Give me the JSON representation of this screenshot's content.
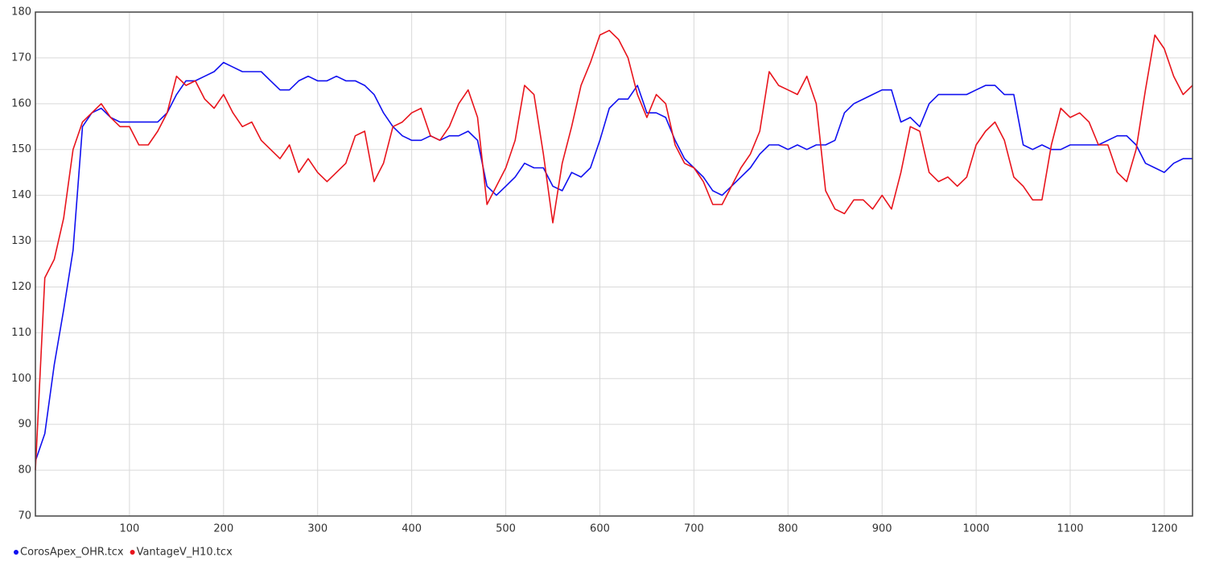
{
  "chart_data": {
    "type": "line",
    "x": [
      0,
      10,
      20,
      30,
      40,
      50,
      60,
      70,
      80,
      90,
      100,
      110,
      120,
      130,
      140,
      150,
      160,
      170,
      180,
      190,
      200,
      210,
      220,
      230,
      240,
      250,
      260,
      270,
      280,
      290,
      300,
      310,
      320,
      330,
      340,
      350,
      360,
      370,
      380,
      390,
      400,
      410,
      420,
      430,
      440,
      450,
      460,
      470,
      480,
      490,
      500,
      510,
      520,
      530,
      540,
      550,
      560,
      570,
      580,
      590,
      600,
      610,
      620,
      630,
      640,
      650,
      660,
      670,
      680,
      690,
      700,
      710,
      720,
      730,
      740,
      750,
      760,
      770,
      780,
      790,
      800,
      810,
      820,
      830,
      840,
      850,
      860,
      870,
      880,
      890,
      900,
      910,
      920,
      930,
      940,
      950,
      960,
      970,
      980,
      990,
      1000,
      1010,
      1020,
      1030,
      1040,
      1050,
      1060,
      1070,
      1080,
      1090,
      1100,
      1110,
      1120,
      1130,
      1140,
      1150,
      1160,
      1170,
      1180,
      1190,
      1200,
      1210,
      1220,
      1230
    ],
    "series": [
      {
        "name": "CorosApex_OHR.tcx",
        "color": "#1010f0",
        "values": [
          82,
          88,
          103,
          115,
          128,
          155,
          158,
          159,
          157,
          156,
          156,
          156,
          156,
          156,
          158,
          162,
          165,
          165,
          166,
          167,
          169,
          168,
          167,
          167,
          167,
          165,
          163,
          163,
          165,
          166,
          165,
          165,
          166,
          165,
          165,
          164,
          162,
          158,
          155,
          153,
          152,
          152,
          153,
          152,
          153,
          153,
          154,
          152,
          142,
          140,
          142,
          144,
          147,
          146,
          146,
          142,
          141,
          145,
          144,
          146,
          152,
          159,
          161,
          161,
          164,
          158,
          158,
          157,
          152,
          148,
          146,
          144,
          141,
          140,
          142,
          144,
          146,
          149,
          151,
          151,
          150,
          151,
          150,
          151,
          151,
          152,
          158,
          160,
          161,
          162,
          163,
          163,
          156,
          157,
          155,
          160,
          162,
          162,
          162,
          162,
          163,
          164,
          164,
          162,
          162,
          151,
          150,
          151,
          150,
          150,
          151,
          151,
          151,
          151,
          152,
          153,
          153,
          151,
          147,
          146,
          145,
          147,
          148,
          148
        ]
      },
      {
        "name": "VantageV_H10.tcx",
        "color": "#e8141c",
        "values": [
          80,
          122,
          126,
          135,
          150,
          156,
          158,
          160,
          157,
          155,
          155,
          151,
          151,
          154,
          158,
          166,
          164,
          165,
          161,
          159,
          162,
          158,
          155,
          156,
          152,
          150,
          148,
          151,
          145,
          148,
          145,
          143,
          145,
          147,
          153,
          154,
          143,
          147,
          155,
          156,
          158,
          159,
          153,
          152,
          155,
          160,
          163,
          157,
          138,
          142,
          146,
          152,
          164,
          162,
          149,
          134,
          147,
          155,
          164,
          169,
          175,
          176,
          174,
          170,
          162,
          157,
          162,
          160,
          151,
          147,
          146,
          143,
          138,
          138,
          142,
          146,
          149,
          154,
          167,
          164,
          163,
          162,
          166,
          160,
          141,
          137,
          136,
          139,
          139,
          137,
          140,
          137,
          145,
          155,
          154,
          145,
          143,
          144,
          142,
          144,
          151,
          154,
          156,
          152,
          144,
          142,
          139,
          139,
          151,
          159,
          157,
          158,
          156,
          151,
          151,
          145,
          143,
          150,
          163,
          175,
          172,
          166,
          162,
          164
        ]
      }
    ],
    "xlim": [
      0,
      1230
    ],
    "xticks": [
      100,
      200,
      300,
      400,
      500,
      600,
      700,
      800,
      900,
      1000,
      1100,
      1200
    ],
    "ylim": [
      70,
      180
    ],
    "yticks": [
      70,
      80,
      90,
      100,
      110,
      120,
      130,
      140,
      150,
      160,
      170,
      180
    ],
    "grid": true,
    "legend": "bottom-left"
  }
}
